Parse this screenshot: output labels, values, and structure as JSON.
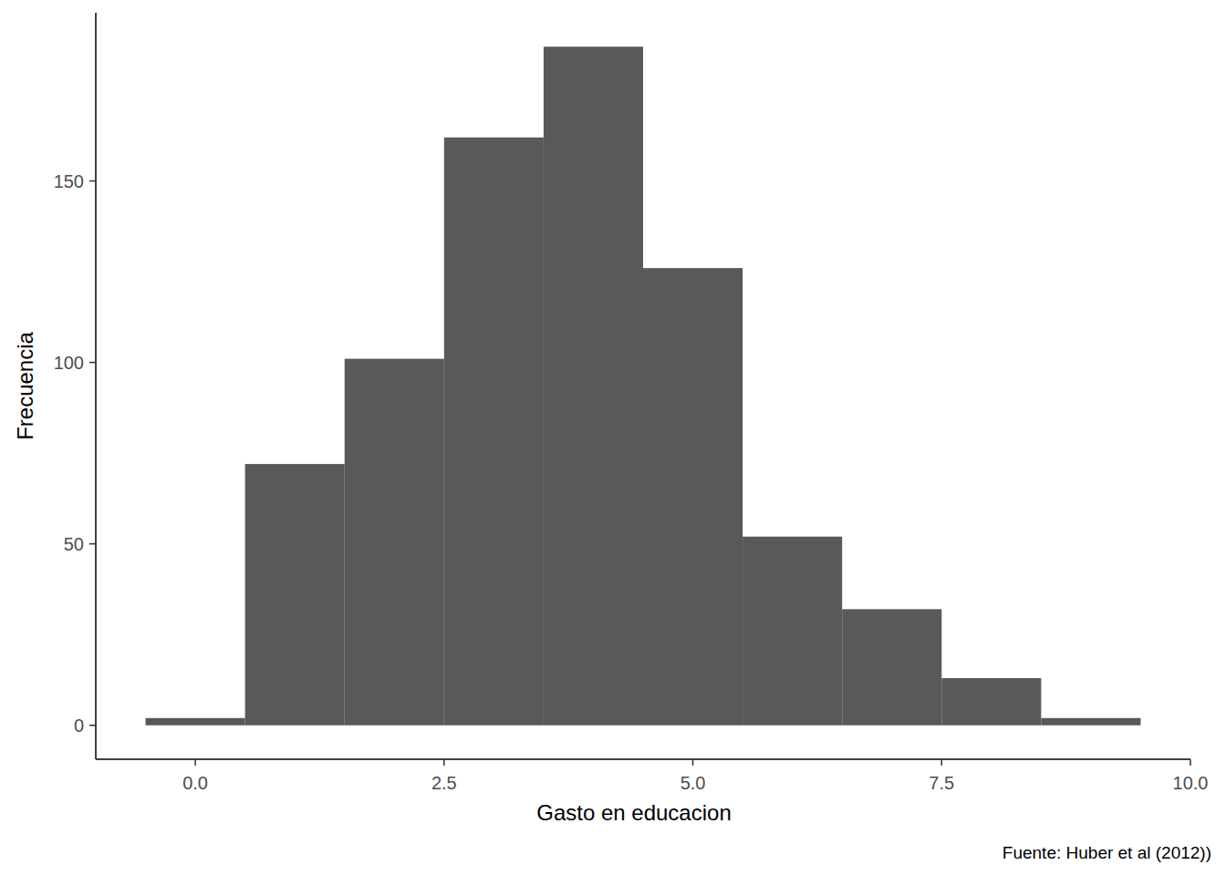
{
  "chart_data": {
    "type": "histogram",
    "x_label": "Gasto en educacion",
    "y_label": "Frecuencia",
    "caption": "Fuente: Huber et al (2012))",
    "bins": [
      -0.5,
      0.5,
      1.5,
      2.5,
      3.5,
      4.5,
      5.5,
      6.5,
      7.5,
      8.5,
      9.5
    ],
    "values": [
      2,
      72,
      101,
      162,
      187,
      126,
      52,
      32,
      13,
      2
    ],
    "color": "#595959",
    "xlim": [
      -1,
      10
    ],
    "xticks": [
      {
        "value": 0,
        "label": "0.0"
      },
      {
        "value": 2.5,
        "label": "2.5"
      },
      {
        "value": 5,
        "label": "5.0"
      },
      {
        "value": 7.5,
        "label": "7.5"
      },
      {
        "value": 10,
        "label": "10.0"
      }
    ],
    "ylim": [
      -9.35,
      196.35
    ],
    "yticks": [
      0,
      50,
      100,
      150
    ],
    "grid": false
  }
}
